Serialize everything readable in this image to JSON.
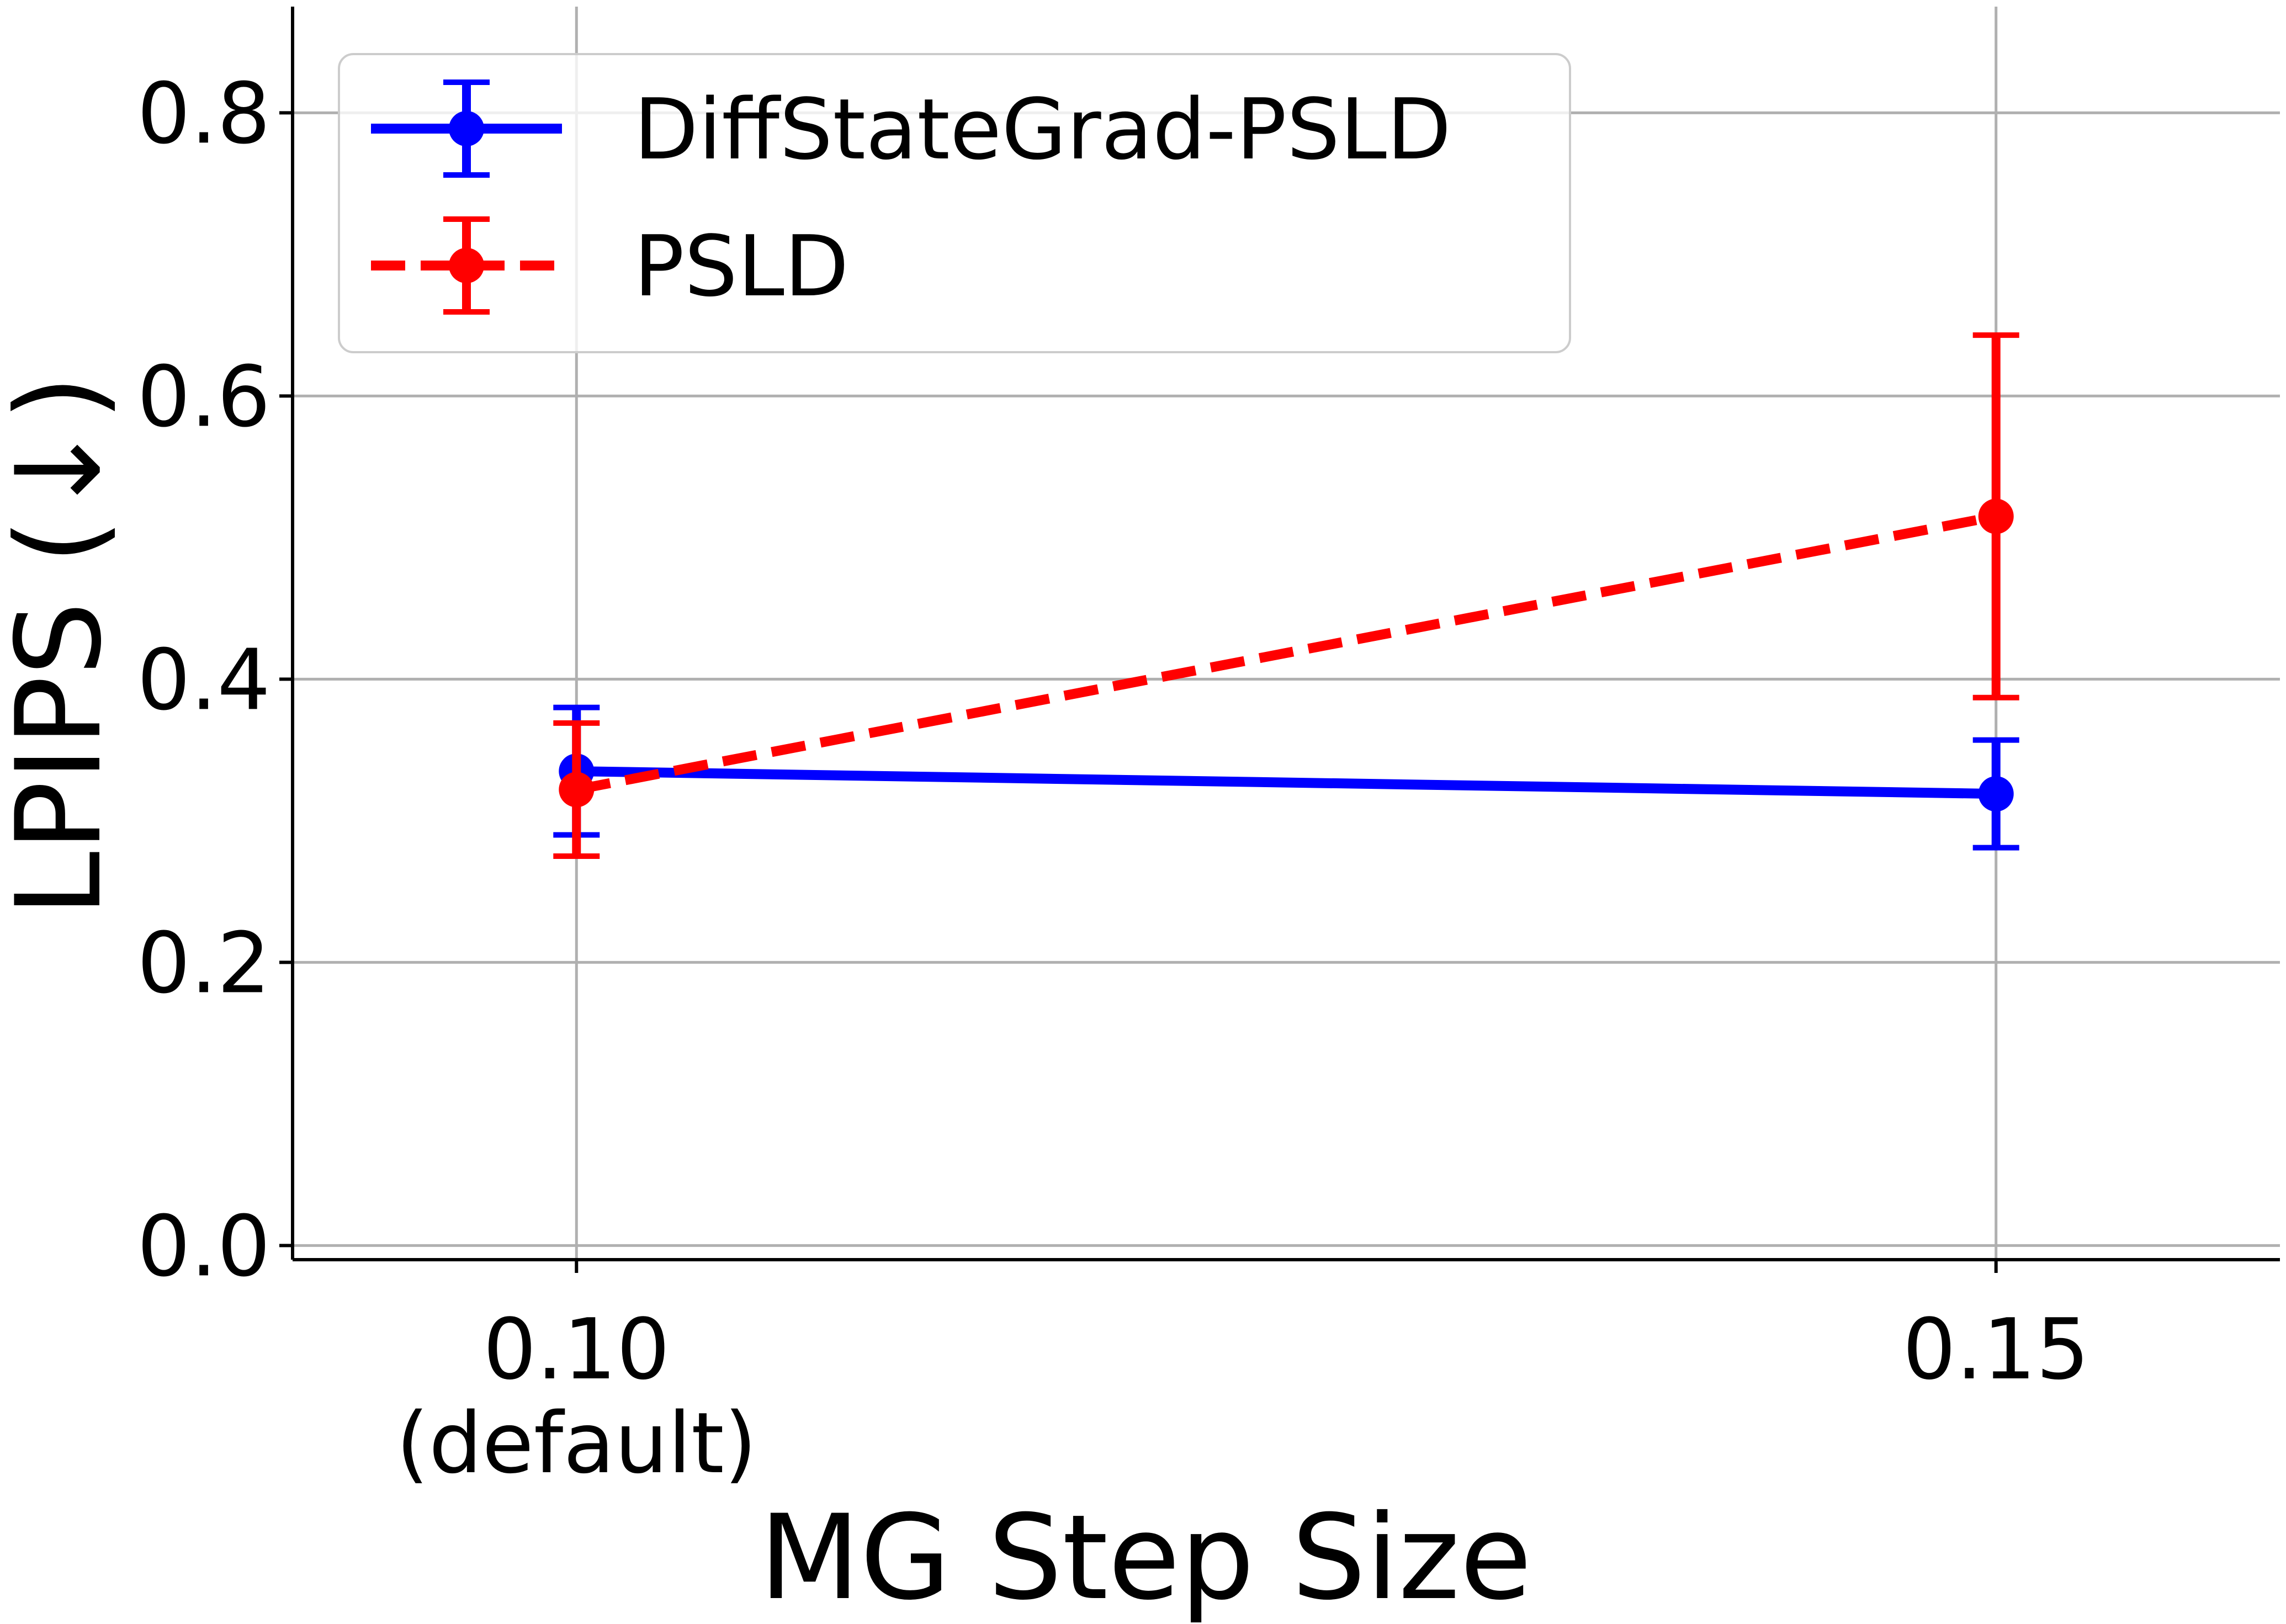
{
  "chart_data": {
    "type": "line",
    "title": "",
    "xlabel": "MG Step Size",
    "ylabel": "LPIPS (↓)",
    "x": [
      0.1,
      0.15
    ],
    "x_tick_labels": [
      {
        "value": 0.1,
        "label": "0.10",
        "sublabel": "(default)"
      },
      {
        "value": 0.15,
        "label": "0.15",
        "sublabel": ""
      }
    ],
    "xlim": [
      0.09,
      0.16
    ],
    "ylim": [
      -0.01,
      0.875
    ],
    "y_ticks": [
      0.0,
      0.2,
      0.4,
      0.6,
      0.8
    ],
    "y_tick_labels": [
      "0.0",
      "0.2",
      "0.4",
      "0.6",
      "0.8"
    ],
    "grid": true,
    "legend_position": "top-left",
    "series": [
      {
        "name": "DiffStateGrad-PSLD",
        "color": "#0000ff",
        "line_style": "solid",
        "y": [
          0.335,
          0.319
        ],
        "err_low": [
          0.29,
          0.281
        ],
        "err_high": [
          0.38,
          0.357
        ]
      },
      {
        "name": "PSLD",
        "color": "#ff0000",
        "line_style": "dashed",
        "y": [
          0.322,
          0.515
        ],
        "err_low": [
          0.275,
          0.387
        ],
        "err_high": [
          0.369,
          0.643
        ]
      }
    ]
  }
}
